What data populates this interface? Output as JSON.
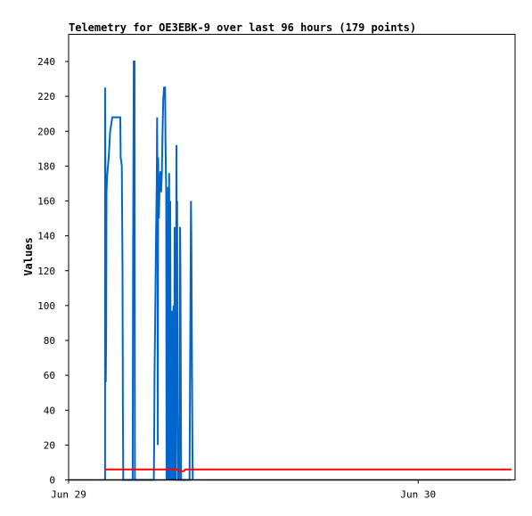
{
  "chart_data": {
    "type": "line",
    "title": "Telemetry for OE3EBK-9 over last 96 hours (179 points)",
    "xlabel": "",
    "ylabel": "Values",
    "x_tick_labels": [
      "Jun 29",
      "Jun 30"
    ],
    "x_tick_hours": [
      0,
      48
    ],
    "xlim_hours": [
      0,
      61.3
    ],
    "ylim": [
      0,
      255
    ],
    "y_ticks": [
      0,
      20,
      40,
      60,
      80,
      100,
      120,
      140,
      160,
      180,
      200,
      220,
      240
    ],
    "grid": false,
    "legend": "none",
    "series": [
      {
        "color": "#0066cc",
        "points": [
          [
            5.0,
            0
          ],
          [
            5.0,
            225
          ],
          [
            5.05,
            170
          ],
          [
            5.1,
            56
          ],
          [
            5.15,
            80
          ],
          [
            5.2,
            165
          ],
          [
            5.3,
            175
          ],
          [
            5.5,
            185
          ],
          [
            5.7,
            200
          ],
          [
            6.0,
            208
          ],
          [
            7.1,
            208
          ],
          [
            7.15,
            185
          ],
          [
            7.3,
            180
          ],
          [
            7.4,
            120
          ],
          [
            7.45,
            40
          ],
          [
            7.5,
            0
          ],
          [
            8.8,
            0
          ],
          [
            8.85,
            120
          ],
          [
            8.95,
            240
          ],
          [
            9.05,
            240
          ],
          [
            9.1,
            0
          ],
          [
            11.7,
            0
          ],
          [
            11.75,
            20
          ],
          [
            11.8,
            60
          ],
          [
            11.9,
            100
          ],
          [
            12.0,
            140
          ],
          [
            12.1,
            170
          ],
          [
            12.15,
            208
          ],
          [
            12.2,
            170
          ],
          [
            12.25,
            20
          ],
          [
            12.3,
            185
          ],
          [
            12.4,
            150
          ],
          [
            12.5,
            170
          ],
          [
            12.6,
            177
          ],
          [
            12.7,
            165
          ],
          [
            12.8,
            175
          ],
          [
            12.9,
            200
          ],
          [
            13.0,
            218
          ],
          [
            13.1,
            225
          ],
          [
            13.25,
            225
          ],
          [
            13.3,
            195
          ],
          [
            13.4,
            165
          ],
          [
            13.45,
            0
          ],
          [
            13.5,
            120
          ],
          [
            13.6,
            0
          ],
          [
            13.65,
            168
          ],
          [
            13.7,
            90
          ],
          [
            13.75,
            0
          ],
          [
            13.8,
            176
          ],
          [
            13.85,
            60
          ],
          [
            13.9,
            0
          ],
          [
            13.95,
            160
          ],
          [
            14.0,
            80
          ],
          [
            14.1,
            0
          ],
          [
            14.15,
            90
          ],
          [
            14.2,
            97
          ],
          [
            14.3,
            0
          ],
          [
            14.35,
            80
          ],
          [
            14.4,
            100
          ],
          [
            14.5,
            0
          ],
          [
            14.55,
            145
          ],
          [
            14.6,
            70
          ],
          [
            14.7,
            0
          ],
          [
            14.75,
            100
          ],
          [
            14.8,
            192
          ],
          [
            14.85,
            120
          ],
          [
            14.9,
            160
          ],
          [
            14.95,
            40
          ],
          [
            15.0,
            0
          ],
          [
            15.2,
            0
          ],
          [
            15.25,
            80
          ],
          [
            15.3,
            145
          ],
          [
            15.35,
            120
          ],
          [
            15.4,
            60
          ],
          [
            15.45,
            0
          ],
          [
            16.6,
            0
          ],
          [
            16.65,
            40
          ],
          [
            16.7,
            80
          ],
          [
            16.75,
            120
          ],
          [
            16.8,
            160
          ],
          [
            16.85,
            140
          ],
          [
            16.9,
            100
          ],
          [
            16.95,
            60
          ],
          [
            17.0,
            20
          ],
          [
            17.05,
            0
          ]
        ]
      },
      {
        "color": "#ff0000",
        "points": [
          [
            5.0,
            6
          ],
          [
            14.9,
            6
          ],
          [
            15.3,
            5
          ],
          [
            15.8,
            5
          ],
          [
            16.0,
            6
          ],
          [
            60.8,
            6
          ]
        ]
      },
      {
        "color": "#000000",
        "points": [
          [
            0,
            0
          ],
          [
            60.8,
            0
          ]
        ]
      }
    ]
  }
}
